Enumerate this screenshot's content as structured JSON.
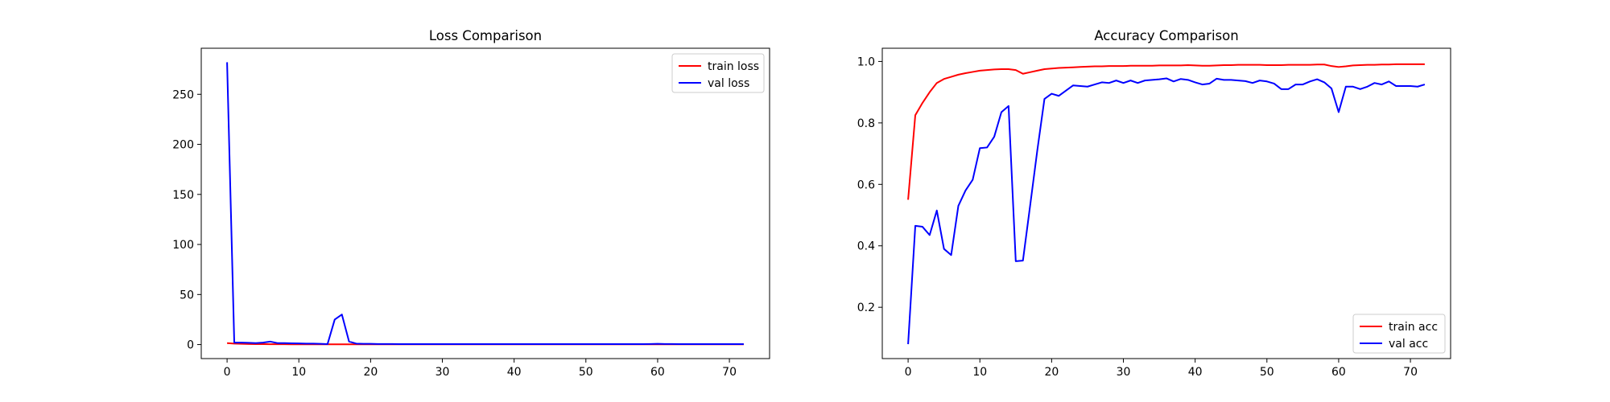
{
  "chart_data": [
    {
      "type": "line",
      "title": "Loss Comparison",
      "xlabel": "",
      "ylabel": "",
      "xlim": [
        -3.6,
        75.6
      ],
      "ylim": [
        -14,
        296
      ],
      "xticks": [
        0,
        10,
        20,
        30,
        40,
        50,
        60,
        70
      ],
      "yticks": [
        0,
        50,
        100,
        150,
        200,
        250
      ],
      "grid": false,
      "legend": "upper right",
      "x": [
        0,
        1,
        2,
        3,
        4,
        5,
        6,
        7,
        8,
        9,
        10,
        11,
        12,
        13,
        14,
        15,
        16,
        17,
        18,
        19,
        20,
        21,
        22,
        23,
        24,
        25,
        26,
        27,
        28,
        29,
        30,
        31,
        32,
        33,
        34,
        35,
        36,
        37,
        38,
        39,
        40,
        41,
        42,
        43,
        44,
        45,
        46,
        47,
        48,
        49,
        50,
        51,
        52,
        53,
        54,
        55,
        56,
        57,
        58,
        59,
        60,
        61,
        62,
        63,
        64,
        65,
        66,
        67,
        68,
        69,
        70,
        71,
        72
      ],
      "series": [
        {
          "name": "train loss",
          "color": "#ff0000",
          "values": [
            1.5,
            1.0,
            0.8,
            0.6,
            0.5,
            0.5,
            0.4,
            0.4,
            0.4,
            0.3,
            0.3,
            0.3,
            0.3,
            0.3,
            0.3,
            0.3,
            0.3,
            0.3,
            0.3,
            0.3,
            0.3,
            0.3,
            0.3,
            0.3,
            0.3,
            0.3,
            0.3,
            0.3,
            0.3,
            0.3,
            0.3,
            0.3,
            0.3,
            0.3,
            0.3,
            0.3,
            0.3,
            0.3,
            0.3,
            0.3,
            0.3,
            0.3,
            0.3,
            0.3,
            0.3,
            0.3,
            0.3,
            0.3,
            0.3,
            0.3,
            0.3,
            0.3,
            0.3,
            0.3,
            0.3,
            0.3,
            0.3,
            0.3,
            0.3,
            0.3,
            0.3,
            0.3,
            0.3,
            0.3,
            0.3,
            0.3,
            0.3,
            0.3,
            0.3,
            0.3,
            0.3,
            0.3,
            0.3
          ]
        },
        {
          "name": "val loss",
          "color": "#0000ff",
          "values": [
            282,
            2.0,
            2.0,
            1.8,
            1.5,
            2.0,
            3.0,
            1.5,
            1.5,
            1.3,
            1.2,
            1.0,
            1.0,
            0.8,
            0.5,
            25,
            30,
            3.0,
            1.0,
            0.8,
            0.8,
            0.6,
            0.6,
            0.6,
            0.5,
            0.5,
            0.5,
            0.5,
            0.5,
            0.5,
            0.5,
            0.5,
            0.5,
            0.5,
            0.5,
            0.5,
            0.5,
            0.5,
            0.5,
            0.5,
            0.5,
            0.5,
            0.5,
            0.5,
            0.5,
            0.5,
            0.5,
            0.5,
            0.5,
            0.5,
            0.5,
            0.5,
            0.5,
            0.5,
            0.5,
            0.5,
            0.5,
            0.5,
            0.5,
            0.6,
            0.8,
            0.6,
            0.6,
            0.5,
            0.5,
            0.5,
            0.5,
            0.5,
            0.5,
            0.5,
            0.5,
            0.5,
            0.5
          ]
        }
      ]
    },
    {
      "type": "line",
      "title": "Accuracy Comparison",
      "xlabel": "",
      "ylabel": "",
      "xlim": [
        -3.6,
        75.6
      ],
      "ylim": [
        0.033,
        1.043
      ],
      "xticks": [
        0,
        10,
        20,
        30,
        40,
        50,
        60,
        70
      ],
      "yticks": [
        0.2,
        0.4,
        0.6,
        0.8,
        1.0
      ],
      "ytick_labels": [
        "0.2",
        "0.4",
        "0.6",
        "0.8",
        "1.0"
      ],
      "grid": false,
      "legend": "lower right",
      "x": [
        0,
        1,
        2,
        3,
        4,
        5,
        6,
        7,
        8,
        9,
        10,
        11,
        12,
        13,
        14,
        15,
        16,
        17,
        18,
        19,
        20,
        21,
        22,
        23,
        24,
        25,
        26,
        27,
        28,
        29,
        30,
        31,
        32,
        33,
        34,
        35,
        36,
        37,
        38,
        39,
        40,
        41,
        42,
        43,
        44,
        45,
        46,
        47,
        48,
        49,
        50,
        51,
        52,
        53,
        54,
        55,
        56,
        57,
        58,
        59,
        60,
        61,
        62,
        63,
        64,
        65,
        66,
        67,
        68,
        69,
        70,
        71,
        72
      ],
      "series": [
        {
          "name": "train acc",
          "color": "#ff0000",
          "values": [
            0.55,
            0.825,
            0.865,
            0.9,
            0.93,
            0.943,
            0.95,
            0.957,
            0.962,
            0.966,
            0.97,
            0.972,
            0.974,
            0.975,
            0.975,
            0.972,
            0.96,
            0.965,
            0.97,
            0.975,
            0.977,
            0.979,
            0.98,
            0.981,
            0.982,
            0.983,
            0.984,
            0.984,
            0.985,
            0.985,
            0.985,
            0.986,
            0.986,
            0.986,
            0.986,
            0.987,
            0.987,
            0.987,
            0.987,
            0.988,
            0.987,
            0.986,
            0.986,
            0.987,
            0.988,
            0.988,
            0.989,
            0.989,
            0.989,
            0.989,
            0.988,
            0.988,
            0.988,
            0.989,
            0.989,
            0.989,
            0.989,
            0.99,
            0.99,
            0.985,
            0.982,
            0.984,
            0.987,
            0.988,
            0.989,
            0.989,
            0.99,
            0.99,
            0.991,
            0.991,
            0.991,
            0.991,
            0.991
          ]
        },
        {
          "name": "val acc",
          "color": "#0000ff",
          "values": [
            0.08,
            0.465,
            0.462,
            0.435,
            0.515,
            0.39,
            0.37,
            0.53,
            0.58,
            0.615,
            0.718,
            0.72,
            0.755,
            0.835,
            0.855,
            0.35,
            0.352,
            0.53,
            0.71,
            0.878,
            0.895,
            0.888,
            0.905,
            0.922,
            0.92,
            0.918,
            0.925,
            0.932,
            0.93,
            0.938,
            0.93,
            0.938,
            0.93,
            0.938,
            0.94,
            0.942,
            0.945,
            0.935,
            0.943,
            0.94,
            0.932,
            0.925,
            0.928,
            0.944,
            0.94,
            0.94,
            0.938,
            0.936,
            0.93,
            0.938,
            0.935,
            0.928,
            0.91,
            0.91,
            0.925,
            0.925,
            0.935,
            0.942,
            0.932,
            0.912,
            0.835,
            0.918,
            0.918,
            0.91,
            0.918,
            0.93,
            0.925,
            0.935,
            0.92,
            0.92,
            0.92,
            0.918,
            0.925
          ]
        }
      ]
    }
  ]
}
